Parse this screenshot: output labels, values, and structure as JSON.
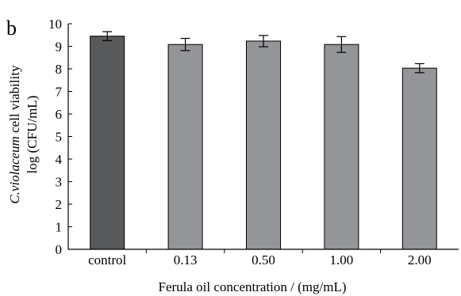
{
  "panel_label": "b",
  "chart_data": {
    "type": "bar",
    "categories": [
      "control",
      "0.13",
      "0.50",
      "1.00",
      "2.00"
    ],
    "values": [
      9.45,
      9.08,
      9.23,
      9.08,
      8.03
    ],
    "errors": [
      0.2,
      0.27,
      0.25,
      0.35,
      0.2
    ],
    "bar_colors": [
      "#58595b",
      "#939598",
      "#939598",
      "#939598",
      "#939598"
    ],
    "xlabel": "Ferula oil concentration / (mg/mL)",
    "ylabel_italic": "C.violaceum",
    "ylabel_rest": " cell viability",
    "ylabel_line2": "log (CFU/mL)",
    "ylim": [
      0,
      10
    ],
    "yticks": [
      "0",
      "1",
      "2",
      "3",
      "4",
      "5",
      "6",
      "7",
      "8",
      "9",
      "10"
    ],
    "grid": false,
    "legend": "none"
  }
}
